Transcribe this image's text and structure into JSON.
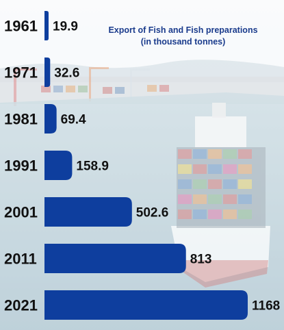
{
  "colors": {
    "bar": "#0e3e9e",
    "year_text": "#111111",
    "value_text": "#111111",
    "title_text": "#1a3b8c"
  },
  "title": {
    "line1": "Export of Fish and Fish preparations",
    "line2": "(in thousand tonnes)"
  },
  "chart_data": {
    "type": "bar",
    "orientation": "horizontal",
    "title": "Export of Fish and Fish preparations (in thousand tonnes)",
    "categories": [
      "1961",
      "1971",
      "1981",
      "1991",
      "2001",
      "2011",
      "2021"
    ],
    "values": [
      19.9,
      32.6,
      69.4,
      158.9,
      502.6,
      813,
      1168
    ],
    "value_labels": [
      "19.9",
      "32.6",
      "69.4",
      "158.9",
      "502.6",
      "813",
      "1168"
    ],
    "xlim": [
      0,
      1168
    ],
    "grid": false,
    "legend": "none"
  }
}
